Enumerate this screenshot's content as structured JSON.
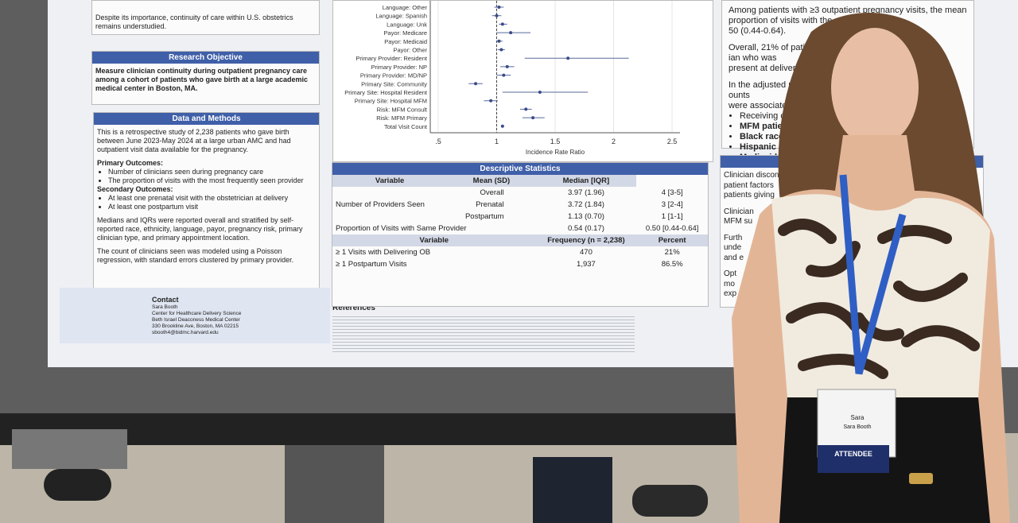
{
  "left_panel": {
    "intro": "Despite its importance, continuity of care within U.S. obstetrics remains understudied.",
    "research_objective": {
      "title": "Research Objective",
      "text": "Measure clinician continuity during outpatient pregnancy care among a cohort of patients who gave birth at a large academic medical center in Boston, MA."
    },
    "methods": {
      "title": "Data and Methods",
      "intro": "This is a retrospective study of 2,238 patients who gave birth between June 2023-May 2024 at a large urban AMC and had outpatient visit data available for the pregnancy.",
      "primary_label": "Primary Outcomes:",
      "primary": [
        "Number of clinicians seen during pregnancy care",
        "The proportion of visits with the most frequently seen provider"
      ],
      "secondary_label": "Secondary Outcomes:",
      "secondary": [
        "At least one prenatal visit with the obstetrician at delivery",
        "At least one postpartum visit"
      ],
      "medians": "Medians and IQRs were reported overall and stratified by self-reported race, ethnicity, language, payor, pregnancy risk, primary clinician type, and primary appointment location.",
      "model": "The count of clinicians seen was modeled using a Poisson regression, with standard errors clustered by primary provider."
    },
    "contact": {
      "title": "Contact",
      "lines": [
        "Sara Booth",
        "Center for Healthcare Delivery Science",
        "Beth Israel Deaconess Medical Center",
        "330 Brookline Ave, Boston, MA 02215",
        "sbooth4@bidmc.harvard.edu"
      ]
    },
    "references_title": "References"
  },
  "forest_plot": {
    "labels": [
      "Language: Other",
      "Language: Spanish",
      "Language: Unk",
      "Payor: Medicare",
      "Payor: Medicaid",
      "Payor: Other",
      "Primary Provider: Resident",
      "Primary Provider: NP",
      "Primary Provider: MD/NP",
      "Primary Site: Community",
      "Primary Site: Hospital Resident",
      "Primary Site: Hospital MFM",
      "Risk: MFM Consult",
      "Risk: MFM Primary",
      "Total Visit Count"
    ],
    "estimate": [
      1.02,
      1.0,
      1.05,
      1.12,
      1.02,
      1.04,
      1.61,
      1.09,
      1.06,
      0.82,
      1.37,
      0.95,
      1.25,
      1.31,
      1.05
    ],
    "ci_low": [
      0.98,
      0.96,
      1.02,
      1.0,
      1.0,
      1.01,
      1.24,
      1.03,
      1.0,
      0.76,
      1.05,
      0.89,
      1.2,
      1.22,
      1.04
    ],
    "ci_high": [
      1.06,
      1.04,
      1.09,
      1.29,
      1.05,
      1.07,
      2.13,
      1.15,
      1.12,
      0.88,
      1.78,
      1.01,
      1.3,
      1.41,
      1.06
    ],
    "xlim": [
      0.5,
      2.5
    ],
    "xticks": [
      {
        "value": 0.5,
        "label": ".5"
      },
      1,
      1.5,
      2,
      2.5
    ],
    "xlabel": "Incidence Rate Ratio"
  },
  "table": {
    "title": "Descriptive Statistics",
    "header1": [
      "Variable",
      "Mean (SD)",
      "Median [IQR]"
    ],
    "group": "Number of Providers Seen",
    "rows1": [
      [
        "Overall",
        "3.97 (1.96)",
        "4 [3-5]"
      ],
      [
        "Prenatal",
        "3.72 (1.84)",
        "3 [2-4]"
      ],
      [
        "Postpartum",
        "1.13 (0.70)",
        "1 [1-1]"
      ]
    ],
    "row_same": [
      "Proportion of Visits with Same Provider",
      "0.54 (0.17)",
      "0.50 [0.44-0.64]"
    ],
    "header2": [
      "Variable",
      "Frequency (n = 2,238)",
      "Percent"
    ],
    "rows2": [
      [
        "≥ 1 Visits with Delivering OB",
        "470",
        "21%"
      ],
      [
        "≥ 1  Postpartum Visits",
        "1,937",
        "86.5%"
      ]
    ]
  },
  "right_panel": {
    "lines": [
      "Among patients with ≥3 outpatient pregnancy visits, the mean",
      "proportion of visits with the same cl",
      "50 (0.44-0.64).",
      "Overall, 21% of patients had",
      "ian who was",
      "present at delivery.",
      "In the adjusted regres",
      "ounts",
      "were associated with"
    ],
    "bullets": [
      "Receiving care in",
      "MFM patient stat",
      "Black race",
      "Hispanic ethnicit",
      "Medicaid covera"
    ],
    "lower_title": "Di",
    "lower": [
      "Clinician discontinu",
      "patient factors",
      "patients giving",
      "Clinician",
      "MFM su",
      "Furth",
      "unde",
      "and e",
      "Opt",
      "mo",
      "exp"
    ]
  },
  "badge": {
    "first": "Sara",
    "full": "Sara Booth",
    "role": "ATTENDEE"
  }
}
